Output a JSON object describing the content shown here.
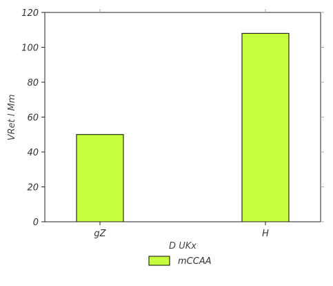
{
  "chart_data": {
    "type": "bar",
    "categories": [
      "gZ",
      "H"
    ],
    "series": [
      {
        "name": "mCCAA",
        "values": [
          50,
          108
        ]
      }
    ],
    "xlabel": "D UKx",
    "ylabel": "VRet l Mm",
    "ylim": [
      0,
      120
    ],
    "yticks": [
      0,
      20,
      40,
      60,
      80,
      100,
      120
    ],
    "grid": false,
    "legend_position": "bottom-center",
    "bar_color": "#c6ff3c",
    "bar_edge_color": "#000000"
  }
}
